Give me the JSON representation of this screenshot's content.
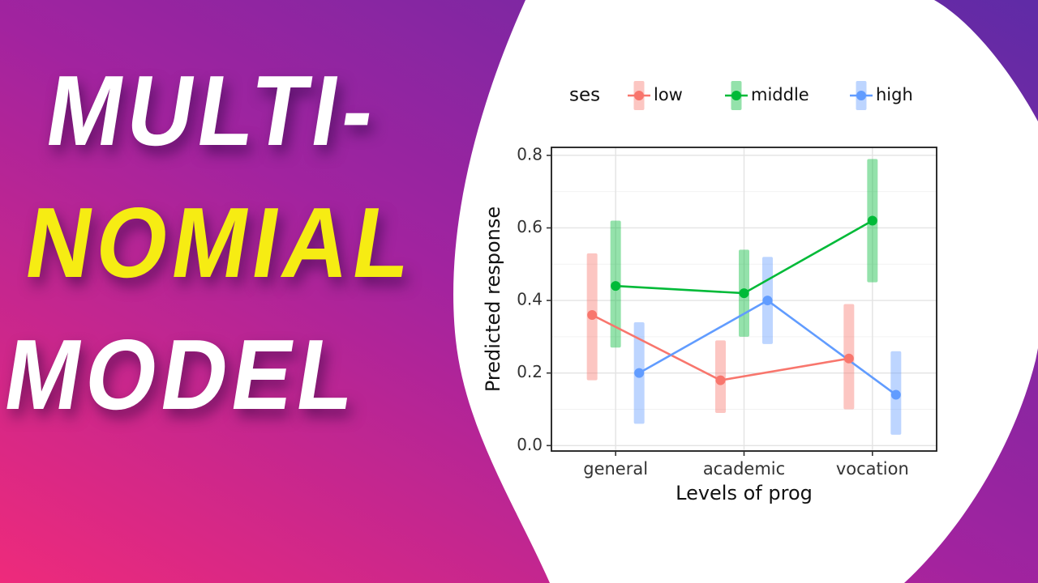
{
  "title_panel": {
    "lines": [
      {
        "text": "MULTI-",
        "color": "#FFFFFF"
      },
      {
        "text": "NOMIAL",
        "color": "#F6EC13"
      },
      {
        "text": "MODEL",
        "color": "#FFFFFF"
      }
    ]
  },
  "colors": {
    "gradient_start": "#EE2A7B",
    "gradient_mid": "#A2239F",
    "gradient_end": "#5F2BA6",
    "panel": "#FFFFFF",
    "axis_text": "#333333",
    "panel_border": "#1A1A1A"
  },
  "chart_data": {
    "type": "line",
    "subtype": "pointrange-with-ci-bands",
    "title": "",
    "xlabel": "Levels of prog",
    "ylabel": "Predicted response",
    "categories": [
      "general",
      "academic",
      "vocation"
    ],
    "ylim": [
      0.0,
      0.8
    ],
    "yticks": [
      0.0,
      0.2,
      0.4,
      0.6,
      0.8
    ],
    "grid": true,
    "legend": {
      "title": "ses",
      "position": "top"
    },
    "series": [
      {
        "name": "low",
        "color": "#F8766D",
        "values": [
          0.36,
          0.18,
          0.24
        ],
        "ci_low": [
          0.18,
          0.09,
          0.1
        ],
        "ci_high": [
          0.53,
          0.29,
          0.39
        ]
      },
      {
        "name": "middle",
        "color": "#00BA38",
        "values": [
          0.44,
          0.42,
          0.62
        ],
        "ci_low": [
          0.27,
          0.3,
          0.45
        ],
        "ci_high": [
          0.62,
          0.54,
          0.79
        ]
      },
      {
        "name": "high",
        "color": "#619CFF",
        "values": [
          0.2,
          0.4,
          0.14
        ],
        "ci_low": [
          0.06,
          0.28,
          0.03
        ],
        "ci_high": [
          0.34,
          0.52,
          0.26
        ]
      }
    ]
  }
}
